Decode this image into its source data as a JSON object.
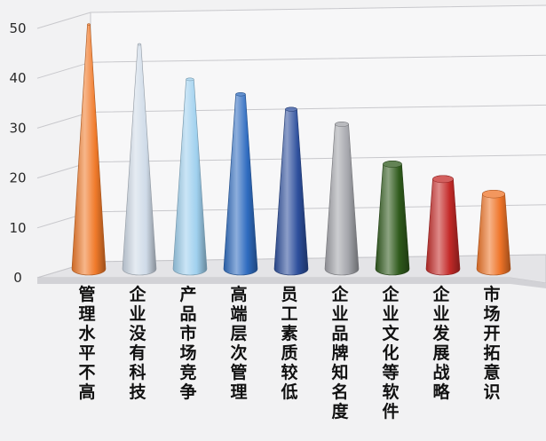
{
  "chart_data": {
    "type": "bar",
    "categories": [
      "管理水平不高",
      "企业没有科技",
      "产品市场竞争",
      "高端层次管理",
      "员工素质较低",
      "企业品牌知名度",
      "企业文化等软件",
      "企业发展战略",
      "市场开拓意识"
    ],
    "values": [
      49,
      45,
      38,
      35,
      32,
      29,
      21,
      18,
      15
    ],
    "colors": [
      "#f07a2a",
      "#cfdbe8",
      "#9fd0ee",
      "#2f6cc0",
      "#2d4f9c",
      "#a3a4aa",
      "#2f5a1c",
      "#c42a28",
      "#ef7428"
    ],
    "ylim": [
      0,
      50
    ],
    "yticks": [
      0,
      10,
      20,
      30,
      40,
      50
    ],
    "ytick_labels": [
      "0",
      "10",
      "20",
      "30",
      "40",
      "50"
    ],
    "grid": true,
    "title": "",
    "xlabel": "",
    "ylabel": ""
  }
}
